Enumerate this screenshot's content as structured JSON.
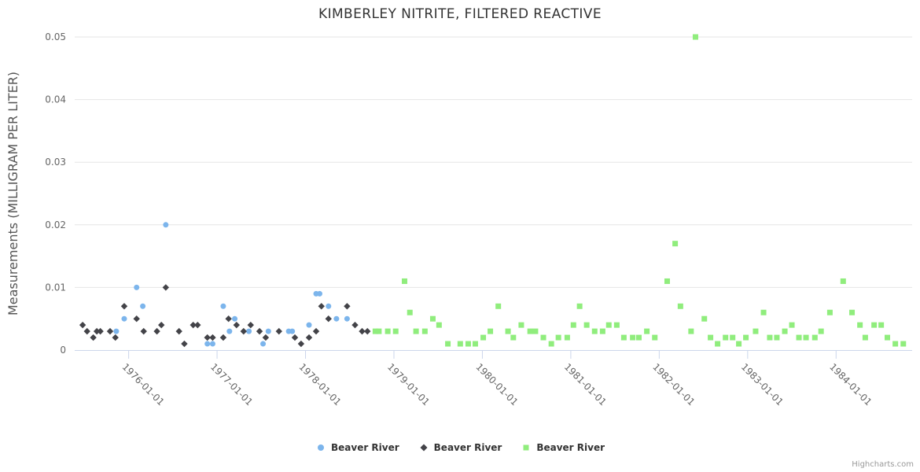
{
  "chart_data": {
    "type": "scatter",
    "title": "KIMBERLEY NITRITE, FILTERED REACTIVE",
    "xlabel": "",
    "ylabel": "Measurements (MILLIGRAM PER LITER)",
    "credit": "Highcharts.com",
    "ylim": [
      0,
      0.05
    ],
    "xlim_years": [
      1975.39,
      1984.86
    ],
    "grid": "horizontal",
    "legend_position": "bottom-center",
    "colors": {
      "axis_line": "#ccd6eb",
      "grid_line": "#e6e6e6",
      "axis_text": "#666666",
      "title_text": "#333333",
      "ytitle_text": "#555555"
    },
    "y_ticks": [
      {
        "value": 0,
        "label": "0"
      },
      {
        "value": 0.01,
        "label": "0.01"
      },
      {
        "value": 0.02,
        "label": "0.02"
      },
      {
        "value": 0.03,
        "label": "0.03"
      },
      {
        "value": 0.04,
        "label": "0.04"
      },
      {
        "value": 0.05,
        "label": "0.05"
      }
    ],
    "x_ticks": [
      {
        "year": 1976,
        "label": "1976-01-01"
      },
      {
        "year": 1977,
        "label": "1977-01-01"
      },
      {
        "year": 1978,
        "label": "1978-01-01"
      },
      {
        "year": 1979,
        "label": "1979-01-01"
      },
      {
        "year": 1980,
        "label": "1980-01-01"
      },
      {
        "year": 1981,
        "label": "1981-01-01"
      },
      {
        "year": 1982,
        "label": "1982-01-01"
      },
      {
        "year": 1983,
        "label": "1983-01-01"
      },
      {
        "year": 1984,
        "label": "1984-01-01"
      }
    ],
    "series": [
      {
        "name": "Beaver River",
        "color": "#7cb5ec",
        "marker": "circle",
        "points": [
          [
            1975.86,
            0.003
          ],
          [
            1975.95,
            0.005
          ],
          [
            1976.09,
            0.01
          ],
          [
            1976.16,
            0.007
          ],
          [
            1976.42,
            0.02
          ],
          [
            1976.89,
            0.001
          ],
          [
            1976.95,
            0.001
          ],
          [
            1977.07,
            0.007
          ],
          [
            1977.14,
            0.003
          ],
          [
            1977.2,
            0.005
          ],
          [
            1977.36,
            0.003
          ],
          [
            1977.52,
            0.001
          ],
          [
            1977.58,
            0.003
          ],
          [
            1977.81,
            0.003
          ],
          [
            1977.85,
            0.003
          ],
          [
            1978.04,
            0.004
          ],
          [
            1978.12,
            0.009
          ],
          [
            1978.16,
            0.009
          ],
          [
            1978.26,
            0.007
          ],
          [
            1978.35,
            0.005
          ],
          [
            1978.47,
            0.005
          ]
        ]
      },
      {
        "name": "Beaver River",
        "color": "#434348",
        "marker": "diamond",
        "points": [
          [
            1975.48,
            0.004
          ],
          [
            1975.53,
            0.003
          ],
          [
            1975.6,
            0.002
          ],
          [
            1975.64,
            0.003
          ],
          [
            1975.68,
            0.003
          ],
          [
            1975.79,
            0.003
          ],
          [
            1975.85,
            0.002
          ],
          [
            1975.95,
            0.007
          ],
          [
            1976.09,
            0.005
          ],
          [
            1976.17,
            0.003
          ],
          [
            1976.32,
            0.003
          ],
          [
            1976.37,
            0.004
          ],
          [
            1976.42,
            0.01
          ],
          [
            1976.57,
            0.003
          ],
          [
            1976.63,
            0.001
          ],
          [
            1976.73,
            0.004
          ],
          [
            1976.78,
            0.004
          ],
          [
            1976.89,
            0.002
          ],
          [
            1976.95,
            0.002
          ],
          [
            1977.07,
            0.002
          ],
          [
            1977.13,
            0.005
          ],
          [
            1977.22,
            0.004
          ],
          [
            1977.3,
            0.003
          ],
          [
            1977.38,
            0.004
          ],
          [
            1977.48,
            0.003
          ],
          [
            1977.55,
            0.002
          ],
          [
            1977.7,
            0.003
          ],
          [
            1977.88,
            0.002
          ],
          [
            1977.95,
            0.001
          ],
          [
            1978.04,
            0.002
          ],
          [
            1978.12,
            0.003
          ],
          [
            1978.18,
            0.007
          ],
          [
            1978.26,
            0.005
          ],
          [
            1978.47,
            0.007
          ],
          [
            1978.56,
            0.004
          ],
          [
            1978.64,
            0.003
          ],
          [
            1978.7,
            0.003
          ]
        ]
      },
      {
        "name": "Beaver River",
        "color": "#90ed7d",
        "marker": "square",
        "points": [
          [
            1978.79,
            0.003
          ],
          [
            1978.83,
            0.003
          ],
          [
            1978.93,
            0.003
          ],
          [
            1979.02,
            0.003
          ],
          [
            1979.12,
            0.011
          ],
          [
            1979.18,
            0.006
          ],
          [
            1979.25,
            0.003
          ],
          [
            1979.35,
            0.003
          ],
          [
            1979.44,
            0.005
          ],
          [
            1979.51,
            0.004
          ],
          [
            1979.61,
            0.001
          ],
          [
            1979.75,
            0.001
          ],
          [
            1979.84,
            0.001
          ],
          [
            1979.92,
            0.001
          ],
          [
            1980.01,
            0.002
          ],
          [
            1980.09,
            0.003
          ],
          [
            1980.18,
            0.007
          ],
          [
            1980.29,
            0.003
          ],
          [
            1980.35,
            0.002
          ],
          [
            1980.44,
            0.004
          ],
          [
            1980.54,
            0.003
          ],
          [
            1980.6,
            0.003
          ],
          [
            1980.69,
            0.002
          ],
          [
            1980.78,
            0.001
          ],
          [
            1980.86,
            0.002
          ],
          [
            1980.96,
            0.002
          ],
          [
            1981.03,
            0.004
          ],
          [
            1981.1,
            0.007
          ],
          [
            1981.18,
            0.004
          ],
          [
            1981.27,
            0.003
          ],
          [
            1981.36,
            0.003
          ],
          [
            1981.43,
            0.004
          ],
          [
            1981.52,
            0.004
          ],
          [
            1981.6,
            0.002
          ],
          [
            1981.7,
            0.002
          ],
          [
            1981.77,
            0.002
          ],
          [
            1981.86,
            0.003
          ],
          [
            1981.95,
            0.002
          ],
          [
            1982.09,
            0.011
          ],
          [
            1982.18,
            0.017
          ],
          [
            1982.24,
            0.007
          ],
          [
            1982.36,
            0.003
          ],
          [
            1982.41,
            0.05
          ],
          [
            1982.51,
            0.005
          ],
          [
            1982.58,
            0.002
          ],
          [
            1982.66,
            0.001
          ],
          [
            1982.75,
            0.002
          ],
          [
            1982.83,
            0.002
          ],
          [
            1982.9,
            0.001
          ],
          [
            1982.98,
            0.002
          ],
          [
            1983.09,
            0.003
          ],
          [
            1983.18,
            0.006
          ],
          [
            1983.25,
            0.002
          ],
          [
            1983.33,
            0.002
          ],
          [
            1983.42,
            0.003
          ],
          [
            1983.5,
            0.004
          ],
          [
            1983.58,
            0.002
          ],
          [
            1983.66,
            0.002
          ],
          [
            1983.76,
            0.002
          ],
          [
            1983.83,
            0.003
          ],
          [
            1983.93,
            0.006
          ],
          [
            1984.08,
            0.011
          ],
          [
            1984.18,
            0.006
          ],
          [
            1984.27,
            0.004
          ],
          [
            1984.33,
            0.002
          ],
          [
            1984.43,
            0.004
          ],
          [
            1984.51,
            0.004
          ],
          [
            1984.58,
            0.002
          ],
          [
            1984.67,
            0.001
          ],
          [
            1984.76,
            0.001
          ]
        ]
      }
    ]
  }
}
